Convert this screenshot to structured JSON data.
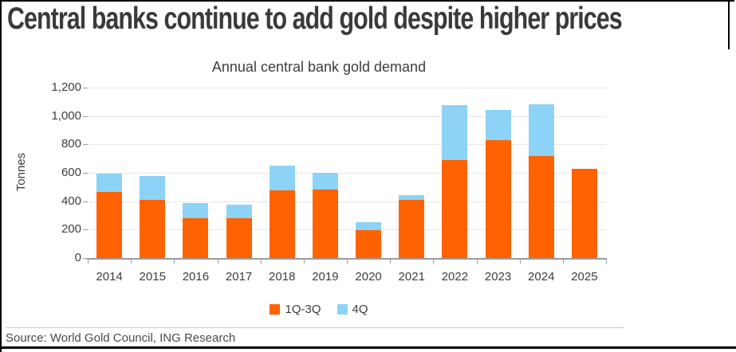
{
  "headline": "Central banks continue to add gold despite higher prices",
  "source": "Source: World Gold Council, ING Research",
  "chart_data": {
    "type": "bar",
    "stacked": true,
    "title": "Annual central bank gold demand",
    "xlabel": "",
    "ylabel": "Tonnes",
    "categories": [
      "2014",
      "2015",
      "2016",
      "2017",
      "2018",
      "2019",
      "2020",
      "2021",
      "2022",
      "2023",
      "2024",
      "2025"
    ],
    "series": [
      {
        "name": "1Q-3Q",
        "color": "#FF6200",
        "values": [
          465,
          410,
          280,
          280,
          475,
          480,
          195,
          410,
          690,
          830,
          720,
          630
        ]
      },
      {
        "name": "4Q",
        "color": "#8CD3F7",
        "values": [
          130,
          170,
          105,
          95,
          175,
          120,
          55,
          35,
          385,
          215,
          365,
          0
        ]
      }
    ],
    "totals": [
      595,
      580,
      385,
      375,
      650,
      600,
      250,
      445,
      1075,
      1045,
      1085,
      630
    ],
    "ylim": [
      0,
      1200
    ],
    "yticks": [
      0,
      200,
      400,
      600,
      800,
      1000,
      1200
    ],
    "ytick_labels": [
      "0",
      "200",
      "400",
      "600",
      "800",
      "1,000",
      "1,200"
    ],
    "grid": true,
    "legend_position": "bottom"
  },
  "colors": {
    "accent_orange": "#FF6200",
    "accent_blue": "#8CD3F7",
    "frame": "#000000"
  }
}
